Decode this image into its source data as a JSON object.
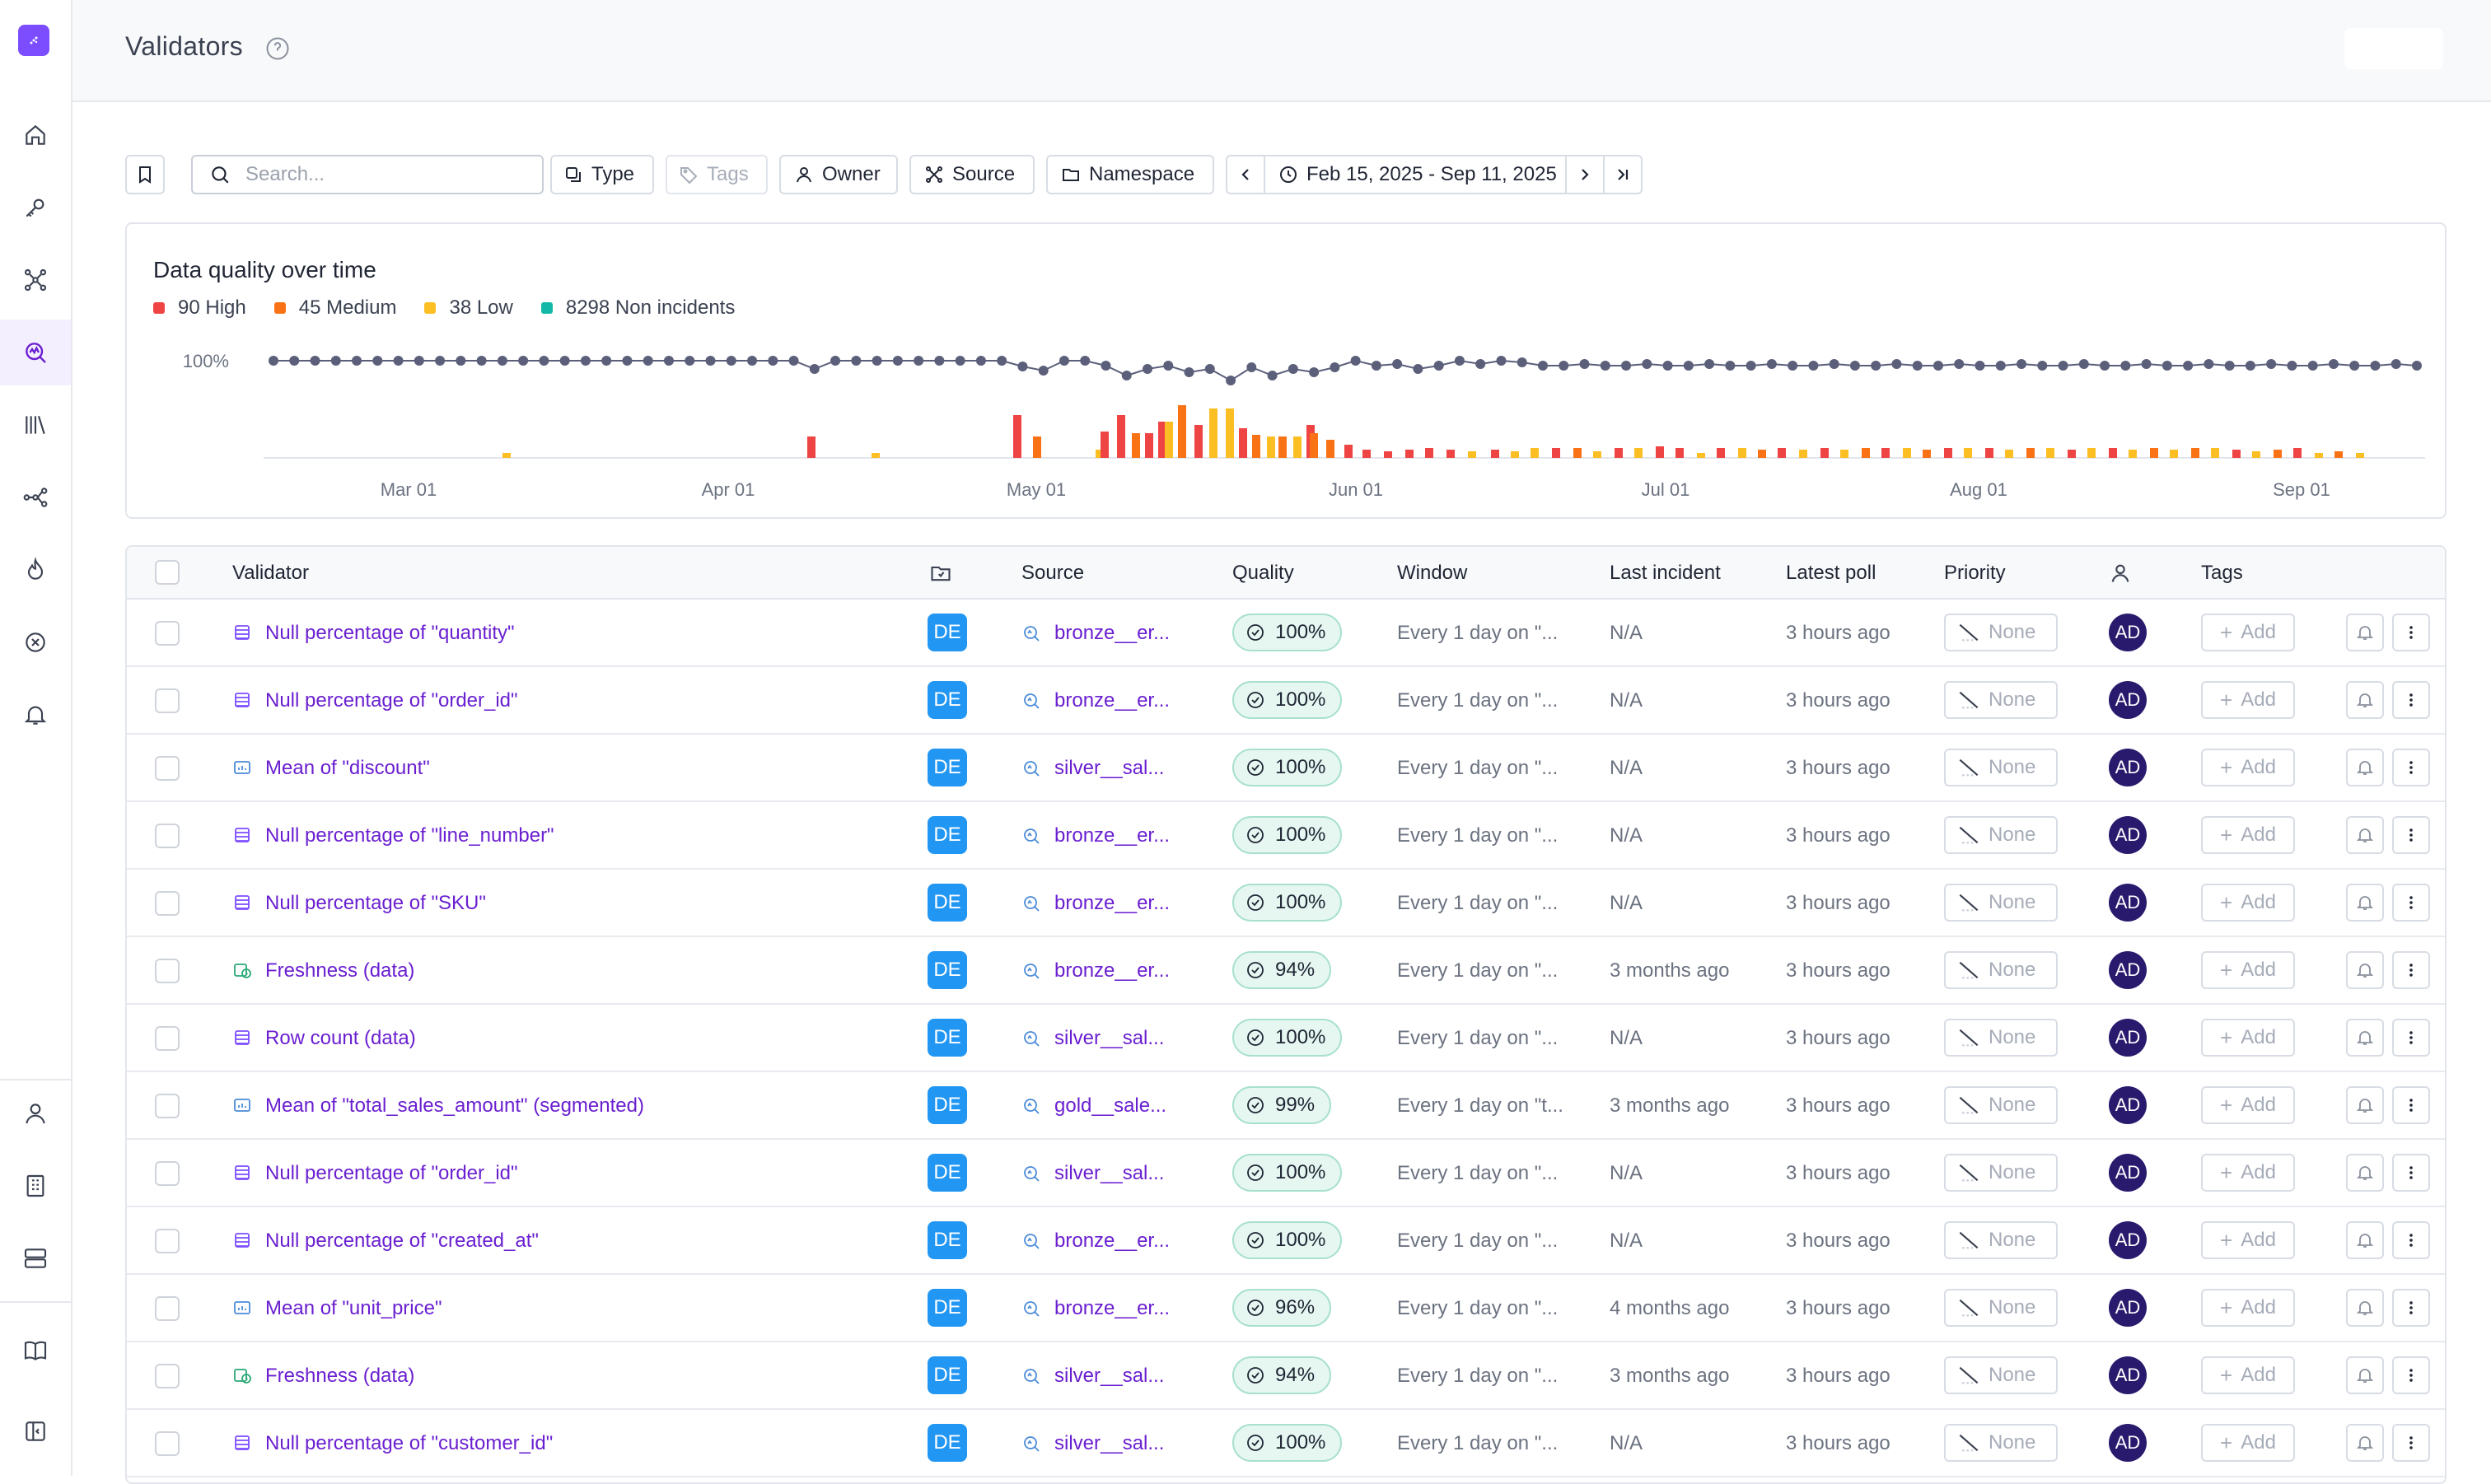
{
  "header": {
    "title": "Validators"
  },
  "sidebar": {
    "items": [
      {
        "name": "home-icon"
      },
      {
        "name": "key-icon"
      },
      {
        "name": "network-icon"
      },
      {
        "name": "validators-icon"
      },
      {
        "name": "library-icon"
      },
      {
        "name": "lineage-icon"
      },
      {
        "name": "fire-icon"
      },
      {
        "name": "circle-x-icon"
      },
      {
        "name": "bell-icon"
      }
    ],
    "bottom_items": [
      {
        "name": "user-icon"
      },
      {
        "name": "building-icon"
      },
      {
        "name": "server-icon"
      },
      {
        "name": "book-icon"
      },
      {
        "name": "collapse-sidebar-icon"
      }
    ]
  },
  "toolbar": {
    "search_placeholder": "Search...",
    "type_label": "Type",
    "tags_label": "Tags",
    "owner_label": "Owner",
    "source_label": "Source",
    "namespace_label": "Namespace",
    "date_range": "Feb 15, 2025 - Sep 11, 2025"
  },
  "chart": {
    "title": "Data quality over time",
    "legend": [
      {
        "label": "90 High",
        "color": "#ef4444"
      },
      {
        "label": "45 Medium",
        "color": "#f97316"
      },
      {
        "label": "38 Low",
        "color": "#fbbf24"
      },
      {
        "label": "8298 Non incidents",
        "color": "#14b8a6"
      }
    ],
    "ytick": "100%",
    "xticks": [
      "Mar 01",
      "Apr 01",
      "May 01",
      "Jun 01",
      "Jul 01",
      "Aug 01",
      "Sep 01"
    ]
  },
  "chart_data": {
    "type": "bar",
    "title": "Data quality over time",
    "xticks": [
      "Mar 01",
      "Apr 01",
      "May 01",
      "Jun 01",
      "Jul 01",
      "Aug 01",
      "Sep 01"
    ],
    "x_range": [
      "2025-02-15",
      "2025-09-11"
    ],
    "ytick": "100%",
    "series": [
      {
        "name": "90 High",
        "color": "#ef4444"
      },
      {
        "name": "45 Medium",
        "color": "#f97316"
      },
      {
        "name": "38 Low",
        "color": "#fbbf24"
      },
      {
        "name": "8298 Non incidents",
        "color": "#14b8a6"
      }
    ],
    "line_color": "#5b5f7a"
  },
  "table": {
    "headers": {
      "validator": "Validator",
      "source": "Source",
      "quality": "Quality",
      "window": "Window",
      "last_incident": "Last incident",
      "latest_poll": "Latest poll",
      "priority": "Priority",
      "tags": "Tags"
    },
    "rows": [
      {
        "name": "Null percentage of \"quantity\"",
        "icon": "table-icon",
        "ns": "DE",
        "source": "bronze__er...",
        "quality": "100%",
        "window": "Every 1 day on \"...",
        "last_incident": "N/A",
        "latest_poll": "3 hours ago",
        "priority": "None",
        "owner": "AD",
        "tag": "Add"
      },
      {
        "name": "Null percentage of \"order_id\"",
        "icon": "table-icon",
        "ns": "DE",
        "source": "bronze__er...",
        "quality": "100%",
        "window": "Every 1 day on \"...",
        "last_incident": "N/A",
        "latest_poll": "3 hours ago",
        "priority": "None",
        "owner": "AD",
        "tag": "Add"
      },
      {
        "name": "Mean of \"discount\"",
        "icon": "chart-icon",
        "ns": "DE",
        "source": "silver__sal...",
        "quality": "100%",
        "window": "Every 1 day on \"...",
        "last_incident": "N/A",
        "latest_poll": "3 hours ago",
        "priority": "None",
        "owner": "AD",
        "tag": "Add"
      },
      {
        "name": "Null percentage of \"line_number\"",
        "icon": "table-icon",
        "ns": "DE",
        "source": "bronze__er...",
        "quality": "100%",
        "window": "Every 1 day on \"...",
        "last_incident": "N/A",
        "latest_poll": "3 hours ago",
        "priority": "None",
        "owner": "AD",
        "tag": "Add"
      },
      {
        "name": "Null percentage of \"SKU\"",
        "icon": "table-icon",
        "ns": "DE",
        "source": "bronze__er...",
        "quality": "100%",
        "window": "Every 1 day on \"...",
        "last_incident": "N/A",
        "latest_poll": "3 hours ago",
        "priority": "None",
        "owner": "AD",
        "tag": "Add"
      },
      {
        "name": "Freshness (data)",
        "icon": "freshness-icon",
        "ns": "DE",
        "source": "bronze__er...",
        "quality": "94%",
        "window": "Every 1 day on \"...",
        "last_incident": "3 months ago",
        "latest_poll": "3 hours ago",
        "priority": "None",
        "owner": "AD",
        "tag": "Add"
      },
      {
        "name": "Row count (data)",
        "icon": "table-icon",
        "ns": "DE",
        "source": "silver__sal...",
        "quality": "100%",
        "window": "Every 1 day on \"...",
        "last_incident": "N/A",
        "latest_poll": "3 hours ago",
        "priority": "None",
        "owner": "AD",
        "tag": "Add"
      },
      {
        "name": "Mean of \"total_sales_amount\" (segmented)",
        "icon": "chart-icon",
        "ns": "DE",
        "source": "gold__sale...",
        "quality": "99%",
        "window": "Every 1 day on \"t...",
        "last_incident": "3 months ago",
        "latest_poll": "3 hours ago",
        "priority": "None",
        "owner": "AD",
        "tag": "Add"
      },
      {
        "name": "Null percentage of \"order_id\"",
        "icon": "table-icon",
        "ns": "DE",
        "source": "silver__sal...",
        "quality": "100%",
        "window": "Every 1 day on \"...",
        "last_incident": "N/A",
        "latest_poll": "3 hours ago",
        "priority": "None",
        "owner": "AD",
        "tag": "Add"
      },
      {
        "name": "Null percentage of \"created_at\"",
        "icon": "table-icon",
        "ns": "DE",
        "source": "bronze__er...",
        "quality": "100%",
        "window": "Every 1 day on \"...",
        "last_incident": "N/A",
        "latest_poll": "3 hours ago",
        "priority": "None",
        "owner": "AD",
        "tag": "Add"
      },
      {
        "name": "Mean of \"unit_price\"",
        "icon": "chart-icon",
        "ns": "DE",
        "source": "bronze__er...",
        "quality": "96%",
        "window": "Every 1 day on \"...",
        "last_incident": "4 months ago",
        "latest_poll": "3 hours ago",
        "priority": "None",
        "owner": "AD",
        "tag": "Add"
      },
      {
        "name": "Freshness (data)",
        "icon": "freshness-icon",
        "ns": "DE",
        "source": "silver__sal...",
        "quality": "94%",
        "window": "Every 1 day on \"...",
        "last_incident": "3 months ago",
        "latest_poll": "3 hours ago",
        "priority": "None",
        "owner": "AD",
        "tag": "Add"
      },
      {
        "name": "Null percentage of \"customer_id\"",
        "icon": "table-icon",
        "ns": "DE",
        "source": "silver__sal...",
        "quality": "100%",
        "window": "Every 1 day on \"...",
        "last_incident": "N/A",
        "latest_poll": "3 hours ago",
        "priority": "None",
        "owner": "AD",
        "tag": "Add"
      }
    ]
  }
}
